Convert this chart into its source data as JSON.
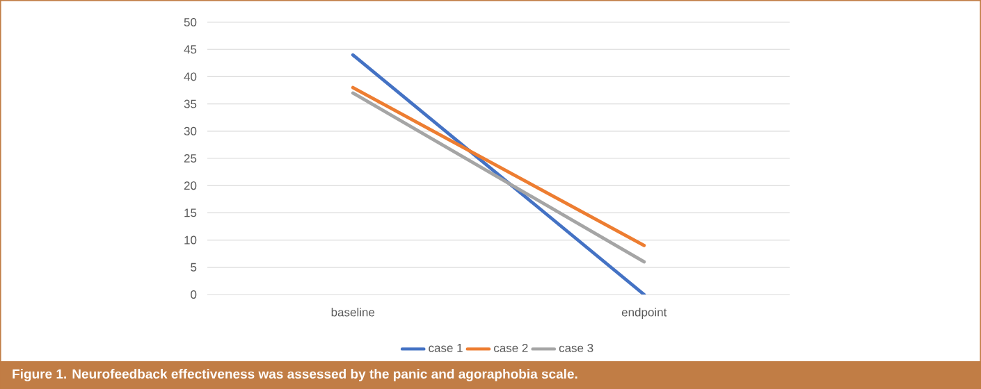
{
  "chart_data": {
    "type": "line",
    "categories": [
      "baseline",
      "endpoint"
    ],
    "series": [
      {
        "name": "case 1",
        "color": "#4472c4",
        "values": [
          44,
          0
        ]
      },
      {
        "name": "case 2",
        "color": "#ed7d31",
        "values": [
          38,
          9
        ]
      },
      {
        "name": "case 3",
        "color": "#a5a5a5",
        "values": [
          37,
          6
        ]
      }
    ],
    "ylim": [
      0,
      50
    ],
    "yticks": [
      0,
      5,
      10,
      15,
      20,
      25,
      30,
      35,
      40,
      45,
      50
    ],
    "grid": "y",
    "legend": "bottom",
    "marker": "none",
    "line_style": "solid",
    "annotations": [
      "Figure 1.  Neurofeedback effectiveness was assessed by the panic and agoraphobia scale."
    ]
  }
}
